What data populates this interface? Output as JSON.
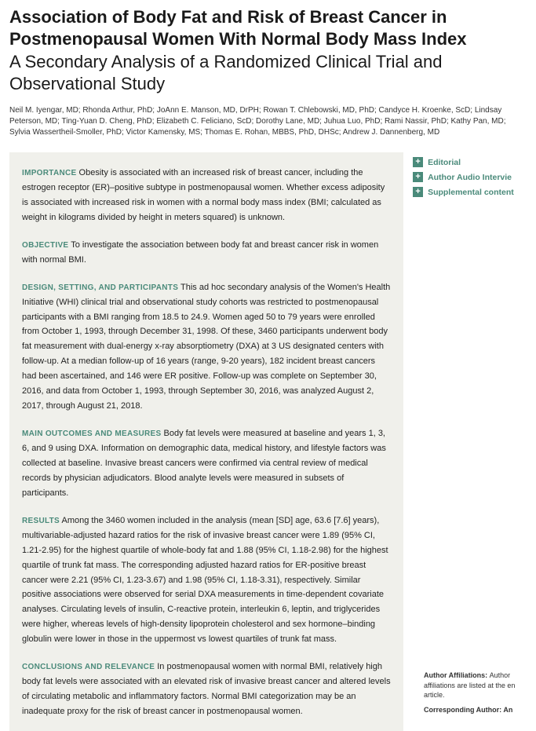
{
  "title": "Association of Body Fat and Risk of Breast Cancer in Postmenopausal Women With Normal Body Mass Index",
  "subtitle": "A Secondary Analysis of a Randomized Clinical Trial and Observational Study",
  "authors": "Neil M. Iyengar, MD; Rhonda Arthur, PhD; JoAnn E. Manson, MD, DrPH; Rowan T. Chlebowski, MD, PhD; Candyce H. Kroenke, ScD; Lindsay Peterson, MD; Ting-Yuan D. Cheng, PhD; Elizabeth C. Feliciano, ScD; Dorothy Lane, MD; Juhua Luo, PhD; Rami Nassir, PhD; Kathy Pan, MD; Sylvia Wassertheil-Smoller, PhD; Victor Kamensky, MS; Thomas E. Rohan, MBBS, PhD, DHSc; Andrew J. Dannenberg, MD",
  "abstract": {
    "importance": {
      "label": "IMPORTANCE",
      "text": "  Obesity is associated with an increased risk of breast cancer, including the estrogen receptor (ER)–positive subtype in postmenopausal women. Whether excess adiposity is associated with increased risk in women with a normal body mass index (BMI; calculated as weight in kilograms divided by height in meters squared) is unknown."
    },
    "objective": {
      "label": "OBJECTIVE",
      "text": "  To investigate the association between body fat and breast cancer risk in women with normal BMI."
    },
    "design": {
      "label": "DESIGN, SETTING, AND PARTICIPANTS",
      "text": "  This ad hoc secondary analysis of the Women's Health Initiative (WHI) clinical trial and observational study cohorts was restricted to postmenopausal participants with a BMI ranging from 18.5 to 24.9. Women aged 50 to 79 years were enrolled from October 1, 1993, through December 31, 1998. Of these, 3460 participants underwent body fat measurement with dual-energy x-ray absorptiometry (DXA) at 3 US designated centers with follow-up. At a median follow-up of 16 years (range, 9-20 years), 182 incident breast cancers had been ascertained, and 146 were ER positive. Follow-up was complete on September 30, 2016, and data from October 1, 1993, through September 30, 2016, was analyzed August 2, 2017, through August 21, 2018."
    },
    "outcomes": {
      "label": "MAIN OUTCOMES AND MEASURES",
      "text": "  Body fat levels were measured at baseline and years 1, 3, 6, and 9 using DXA. Information on demographic data, medical history, and lifestyle factors was collected at baseline. Invasive breast cancers were confirmed via central review of medical records by physician adjudicators. Blood analyte levels were measured in subsets of participants."
    },
    "results": {
      "label": "RESULTS",
      "text": "  Among the 3460 women included in the analysis (mean [SD] age, 63.6 [7.6] years), multivariable-adjusted hazard ratios for the risk of invasive breast cancer were 1.89 (95% CI, 1.21-2.95) for the highest quartile of whole-body fat and 1.88 (95% CI, 1.18-2.98) for the highest quartile of trunk fat mass. The corresponding adjusted hazard ratios for ER-positive breast cancer were 2.21 (95% CI, 1.23-3.67) and 1.98 (95% CI, 1.18-3.31), respectively. Similar positive associations were observed for serial DXA measurements in time-dependent covariate analyses. Circulating levels of insulin, C-reactive protein, interleukin 6, leptin, and triglycerides were higher, whereas levels of high-density lipoprotein cholesterol and sex hormone–binding globulin were lower in those in the uppermost vs lowest quartiles of trunk fat mass."
    },
    "conclusions": {
      "label": "CONCLUSIONS AND RELEVANCE",
      "text": "  In postmenopausal women with normal BMI, relatively high body fat levels were associated with an elevated risk of invasive breast cancer and altered levels of circulating metabolic and inflammatory factors. Normal BMI categorization may be an inadequate proxy for the risk of breast cancer in postmenopausal women."
    }
  },
  "sidebar": {
    "editorial": "Editorial",
    "audio": "Author Audio Intervie",
    "supplemental": "Supplemental content"
  },
  "affiliations": {
    "label": "Author Affiliations: ",
    "text": "Author affiliations are listed at the en article.",
    "corr": "Corresponding Author: An"
  },
  "colors": {
    "accent": "#4a8a7a",
    "abstract_bg": "#f0f0eb",
    "text": "#222222",
    "title": "#1a1a1a"
  }
}
